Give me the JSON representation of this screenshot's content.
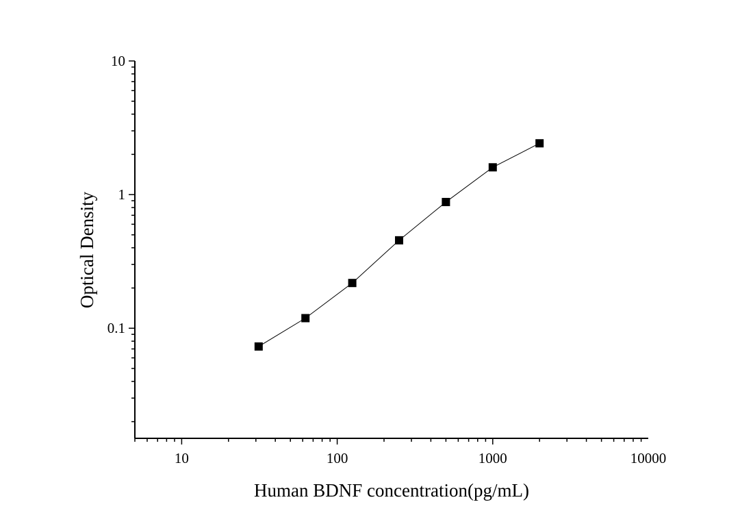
{
  "chart_data": {
    "type": "line",
    "title": "",
    "xlabel": "Human BDNF concentration(pg/mL)",
    "ylabel": "Optical Density",
    "x_scale": "log",
    "y_scale": "log",
    "xlim": [
      5,
      10000
    ],
    "ylim": [
      0.015,
      10
    ],
    "x_ticks": [
      {
        "value": 10,
        "label": "10"
      },
      {
        "value": 100,
        "label": "100"
      },
      {
        "value": 1000,
        "label": "1000"
      },
      {
        "value": 10000,
        "label": "10000"
      }
    ],
    "y_ticks": [
      {
        "value": 0.1,
        "label": "0.1"
      },
      {
        "value": 1,
        "label": "1"
      },
      {
        "value": 10,
        "label": "10"
      }
    ],
    "grid": false,
    "legend": "none",
    "marker": "square",
    "color": "#000000",
    "series": [
      {
        "x": [
          31.25,
          62.5,
          125,
          250,
          500,
          1000,
          2000
        ],
        "y": [
          0.073,
          0.119,
          0.218,
          0.455,
          0.88,
          1.6,
          2.42
        ]
      }
    ]
  }
}
